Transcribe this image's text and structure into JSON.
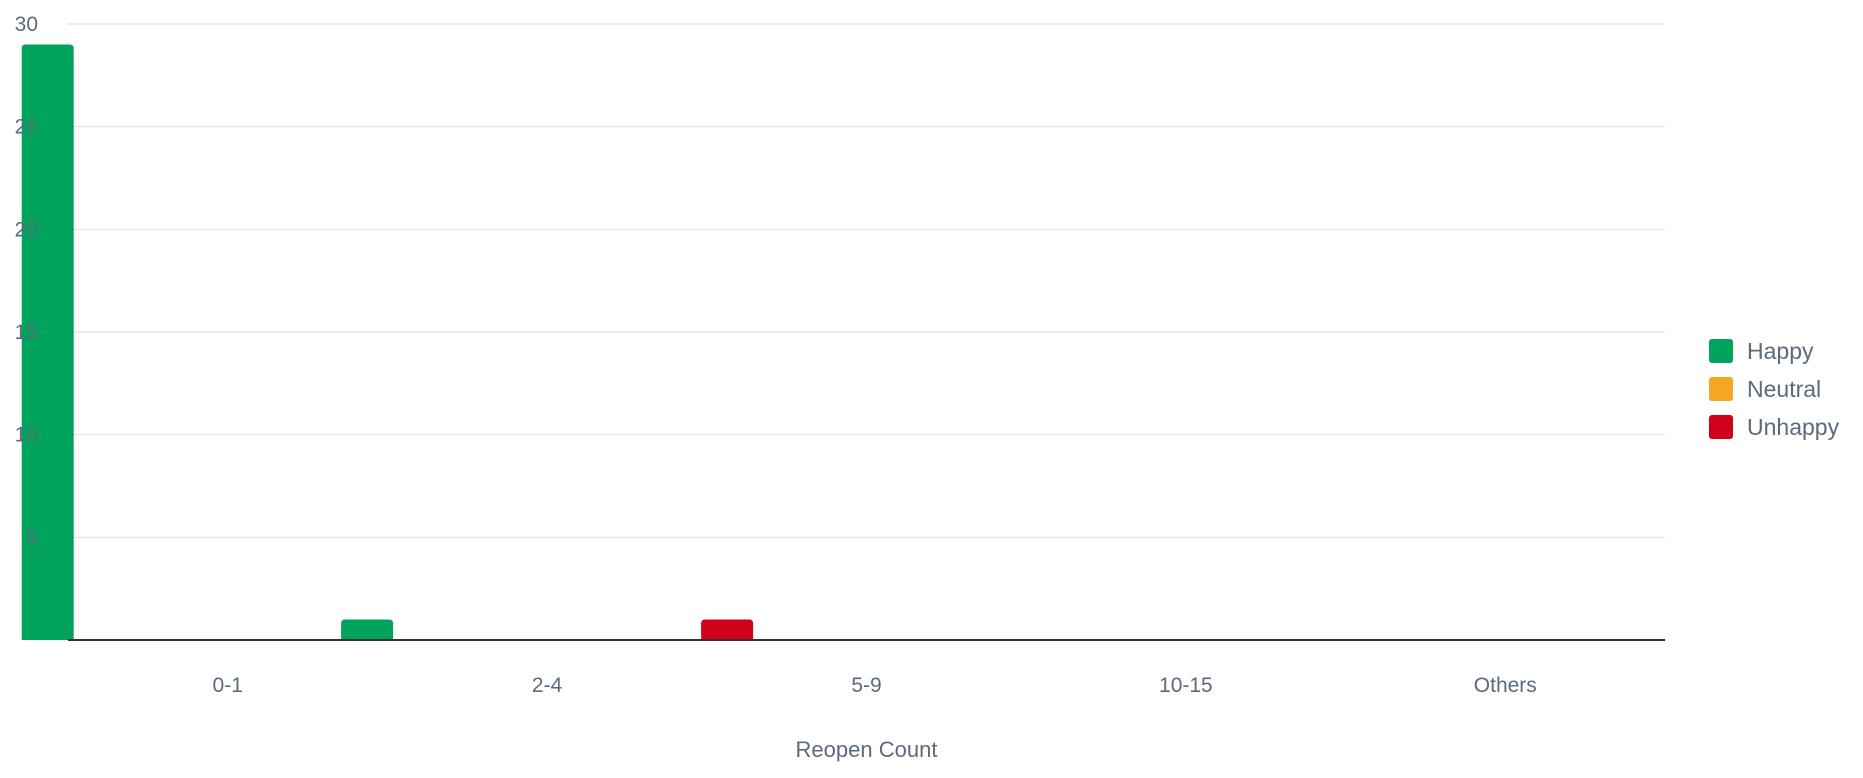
{
  "chart_data": {
    "type": "bar",
    "categories": [
      "0-1",
      "2-4",
      "5-9",
      "10-15",
      "Others"
    ],
    "series": [
      {
        "name": "Happy",
        "color": "#00a35c",
        "values": [
          29,
          1,
          0,
          0,
          0
        ]
      },
      {
        "name": "Neutral",
        "color": "#f5a623",
        "values": [
          0,
          0,
          0,
          0,
          0
        ]
      },
      {
        "name": "Unhappy",
        "color": "#d0021b",
        "values": [
          0,
          1,
          0,
          0,
          0
        ]
      }
    ],
    "title": "",
    "xlabel": "Reopen Count",
    "ylabel": "",
    "ylim": [
      0,
      30
    ],
    "yticks": [
      5,
      10,
      15,
      20,
      25,
      30
    ],
    "grid": true,
    "legend_position": "right"
  }
}
